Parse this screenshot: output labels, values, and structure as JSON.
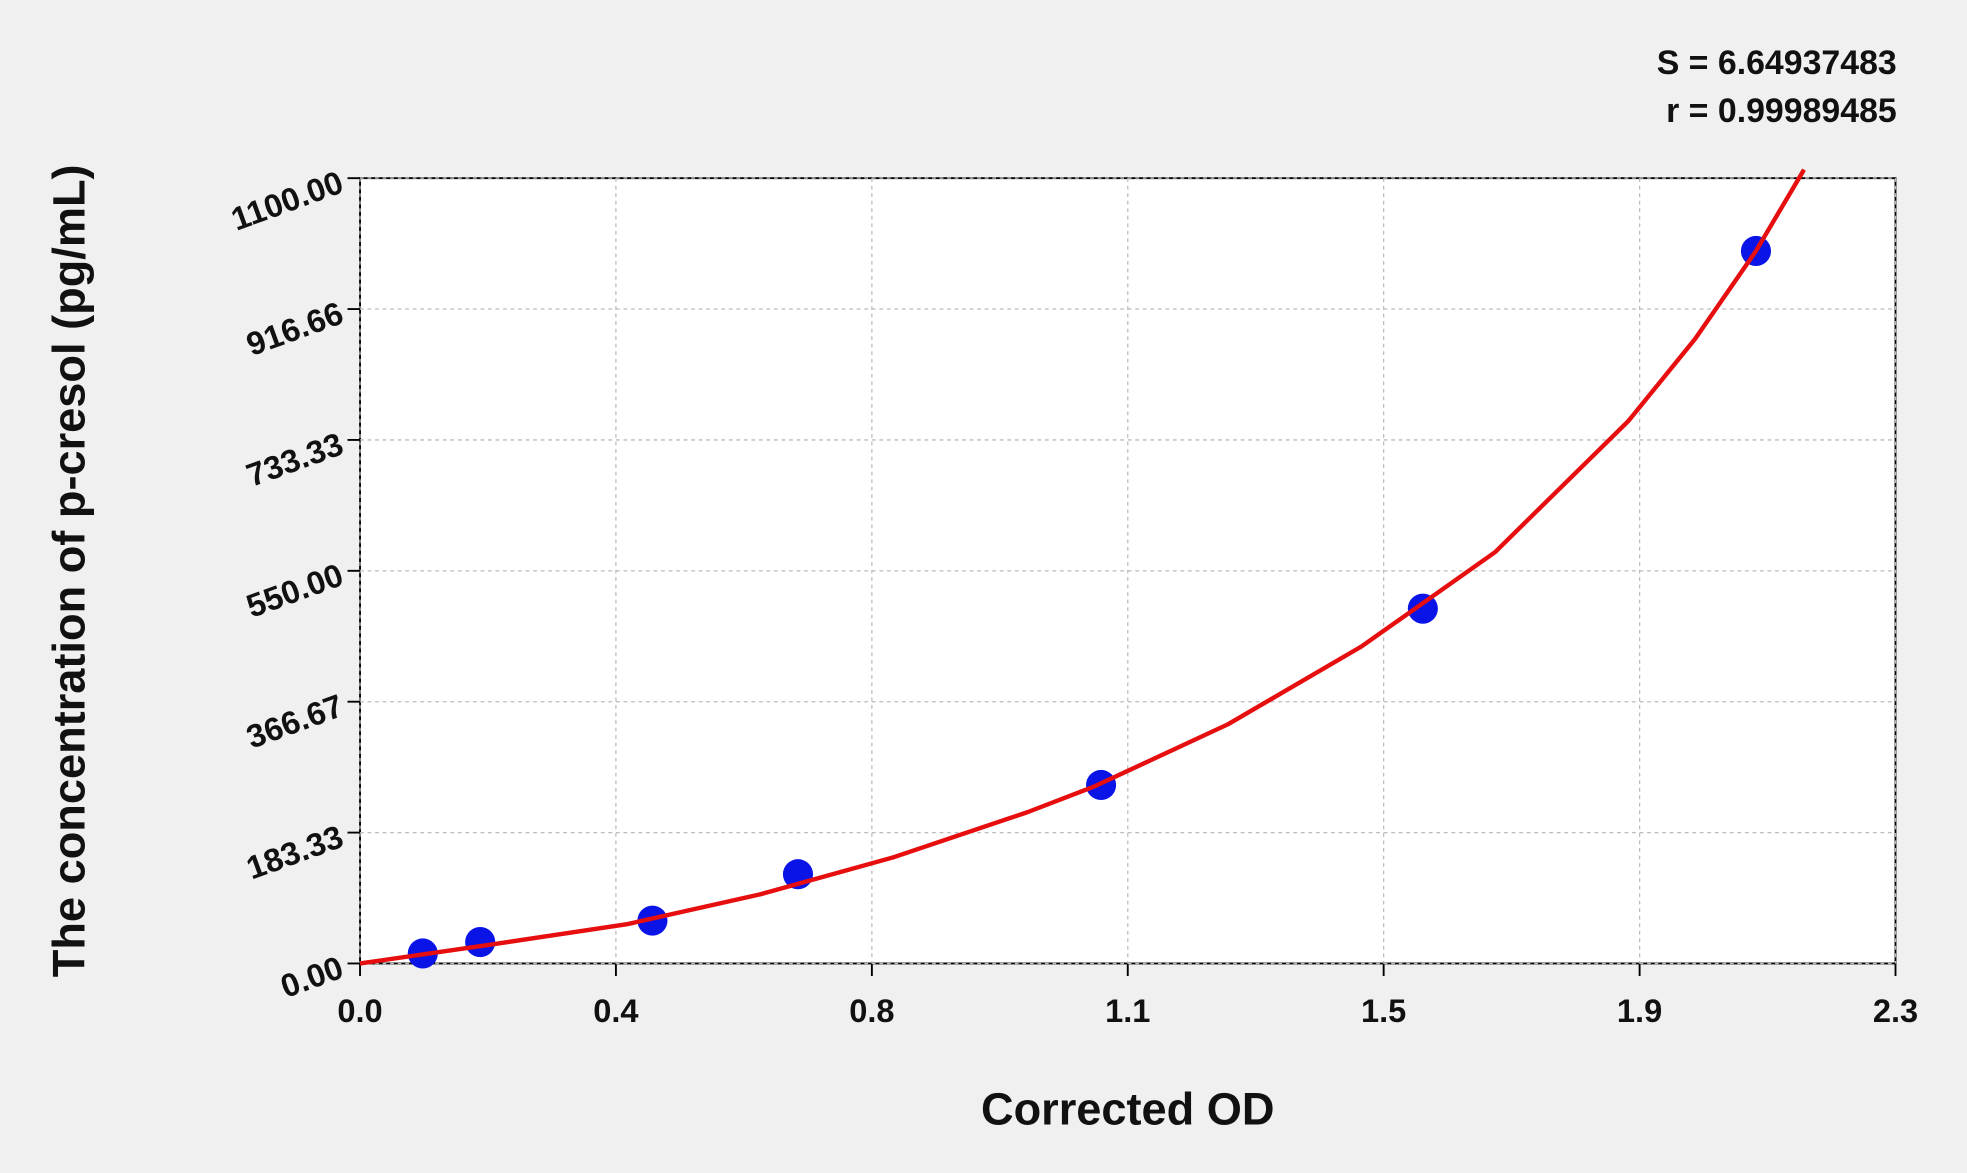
{
  "chart_data": {
    "type": "scatter",
    "x_label": "Corrected OD",
    "y_label": "The concentration of p-cresol (pg/mL)",
    "annotations": [
      "S = 6.64937483",
      "r = 0.99989485"
    ],
    "xlim": [
      0,
      2.3
    ],
    "ylim": [
      0,
      1100
    ],
    "xticks": [
      {
        "value": 0,
        "label": "0.0"
      },
      {
        "value": 0.3833,
        "label": "0.4"
      },
      {
        "value": 0.7667,
        "label": "0.8"
      },
      {
        "value": 1.15,
        "label": "1.1"
      },
      {
        "value": 1.5333,
        "label": "1.5"
      },
      {
        "value": 1.9167,
        "label": "1.9"
      },
      {
        "value": 2.3,
        "label": "2.3"
      }
    ],
    "yticks": [
      {
        "value": 0,
        "label": "0.00"
      },
      183.33,
      366.67,
      {
        "value": 550,
        "label": "550.00"
      },
      733.33,
      916.66,
      {
        "value": 1100,
        "label": "1100.00"
      }
    ],
    "grid": true,
    "series": [
      {
        "type": "scatter",
        "color": "#0a14e6",
        "x": [
          0.094,
          0.18,
          0.438,
          0.656,
          1.11,
          1.592,
          2.091
        ],
        "values": [
          14,
          30,
          60,
          125,
          250,
          497,
          998
        ]
      },
      {
        "type": "line",
        "color": "#e60e0e",
        "x": [
          0,
          0.2,
          0.4,
          0.6,
          0.8,
          1.0,
          1.1,
          1.3,
          1.5,
          1.7,
          1.9,
          2.0,
          2.091,
          2.163
        ],
        "values": [
          0,
          27,
          55,
          97,
          149,
          212,
          248,
          335,
          444,
          576,
          760,
          875,
          998,
          1112
        ]
      }
    ]
  }
}
